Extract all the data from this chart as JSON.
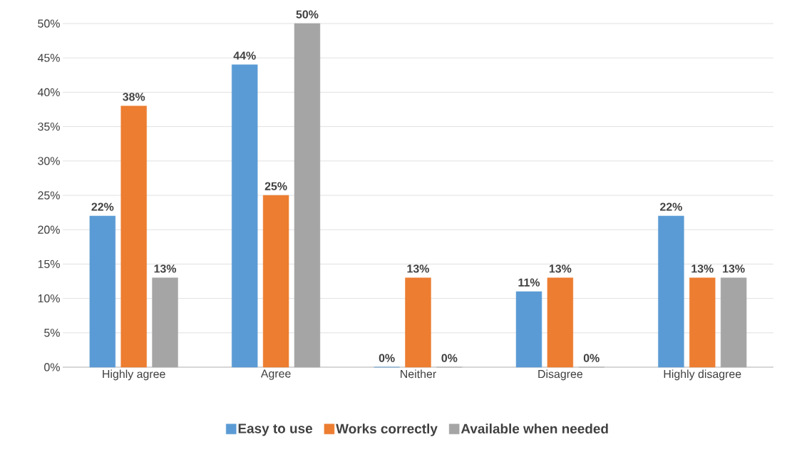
{
  "chart_data": {
    "type": "bar",
    "categories": [
      "Highly agree",
      "Agree",
      "Neither",
      "Disagree",
      "Highly disagree"
    ],
    "series": [
      {
        "name": "Easy to use",
        "color": "#5b9bd5",
        "values": [
          22,
          44,
          0,
          11,
          22
        ],
        "value_labels": [
          "22%",
          "44%",
          "0%",
          "11%",
          "22%"
        ]
      },
      {
        "name": "Works correctly",
        "color": "#ed7d31",
        "values": [
          38,
          25,
          13,
          13,
          13
        ],
        "value_labels": [
          "38%",
          "25%",
          "13%",
          "13%",
          "13%"
        ]
      },
      {
        "name": "Available when needed",
        "color": "#a5a5a5",
        "values": [
          13,
          50,
          0,
          0,
          13
        ],
        "value_labels": [
          "13%",
          "50%",
          "0%",
          "0%",
          "13%"
        ]
      }
    ],
    "ylim": [
      0,
      50
    ],
    "yticks": [
      {
        "value": 0,
        "label": "0%"
      },
      {
        "value": 5,
        "label": "5%"
      },
      {
        "value": 10,
        "label": "10%"
      },
      {
        "value": 15,
        "label": "15%"
      },
      {
        "value": 20,
        "label": "20%"
      },
      {
        "value": 25,
        "label": "25%"
      },
      {
        "value": 30,
        "label": "30%"
      },
      {
        "value": 35,
        "label": "35%"
      },
      {
        "value": 40,
        "label": "40%"
      },
      {
        "value": 45,
        "label": "45%"
      },
      {
        "value": 50,
        "label": "50%"
      }
    ],
    "grid": "y",
    "legend": "bottom"
  }
}
